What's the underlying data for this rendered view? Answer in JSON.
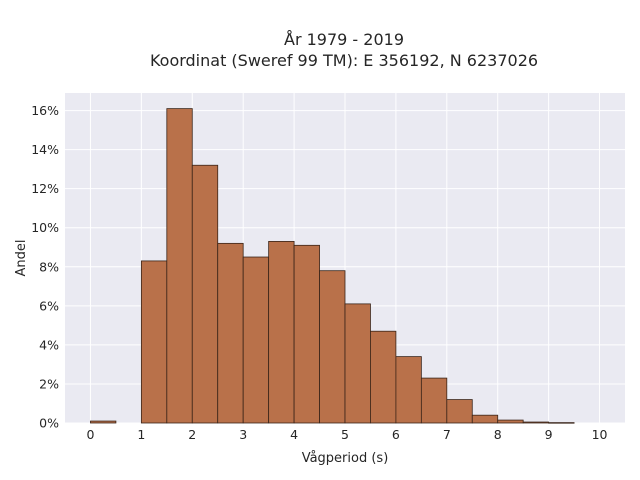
{
  "chart_data": {
    "type": "bar",
    "title_lines": [
      "År 1979 - 2019",
      "Koordinat (Sweref 99 TM): E 356192, N 6237026"
    ],
    "xlabel": "Vågperiod (s)",
    "ylabel": "Andel",
    "x_ticks": [
      "0",
      "1",
      "2",
      "3",
      "4",
      "5",
      "6",
      "7",
      "8",
      "9",
      "10"
    ],
    "y_ticks": [
      "0%",
      "2%",
      "4%",
      "6%",
      "8%",
      "10%",
      "12%",
      "14%",
      "16%"
    ],
    "xlim": [
      -0.5,
      10.5
    ],
    "ylim": [
      0,
      16.9
    ],
    "bin_width": 0.5,
    "bins": [
      {
        "start": 0.0,
        "value": 0.1
      },
      {
        "start": 1.0,
        "value": 8.3
      },
      {
        "start": 1.5,
        "value": 16.1
      },
      {
        "start": 2.0,
        "value": 13.2
      },
      {
        "start": 2.5,
        "value": 9.2
      },
      {
        "start": 3.0,
        "value": 8.5
      },
      {
        "start": 3.5,
        "value": 9.3
      },
      {
        "start": 4.0,
        "value": 9.1
      },
      {
        "start": 4.5,
        "value": 7.8
      },
      {
        "start": 5.0,
        "value": 6.1
      },
      {
        "start": 5.5,
        "value": 4.7
      },
      {
        "start": 6.0,
        "value": 3.4
      },
      {
        "start": 6.5,
        "value": 2.3
      },
      {
        "start": 7.0,
        "value": 1.2
      },
      {
        "start": 7.5,
        "value": 0.4
      },
      {
        "start": 8.0,
        "value": 0.15
      },
      {
        "start": 8.5,
        "value": 0.05
      },
      {
        "start": 9.0,
        "value": 0.02
      }
    ],
    "grid": true,
    "colors": {
      "bar_fill": "#b9714a",
      "bar_edge": "#3a2418",
      "plot_bg": "#eaeaf2",
      "grid": "#ffffff"
    }
  }
}
